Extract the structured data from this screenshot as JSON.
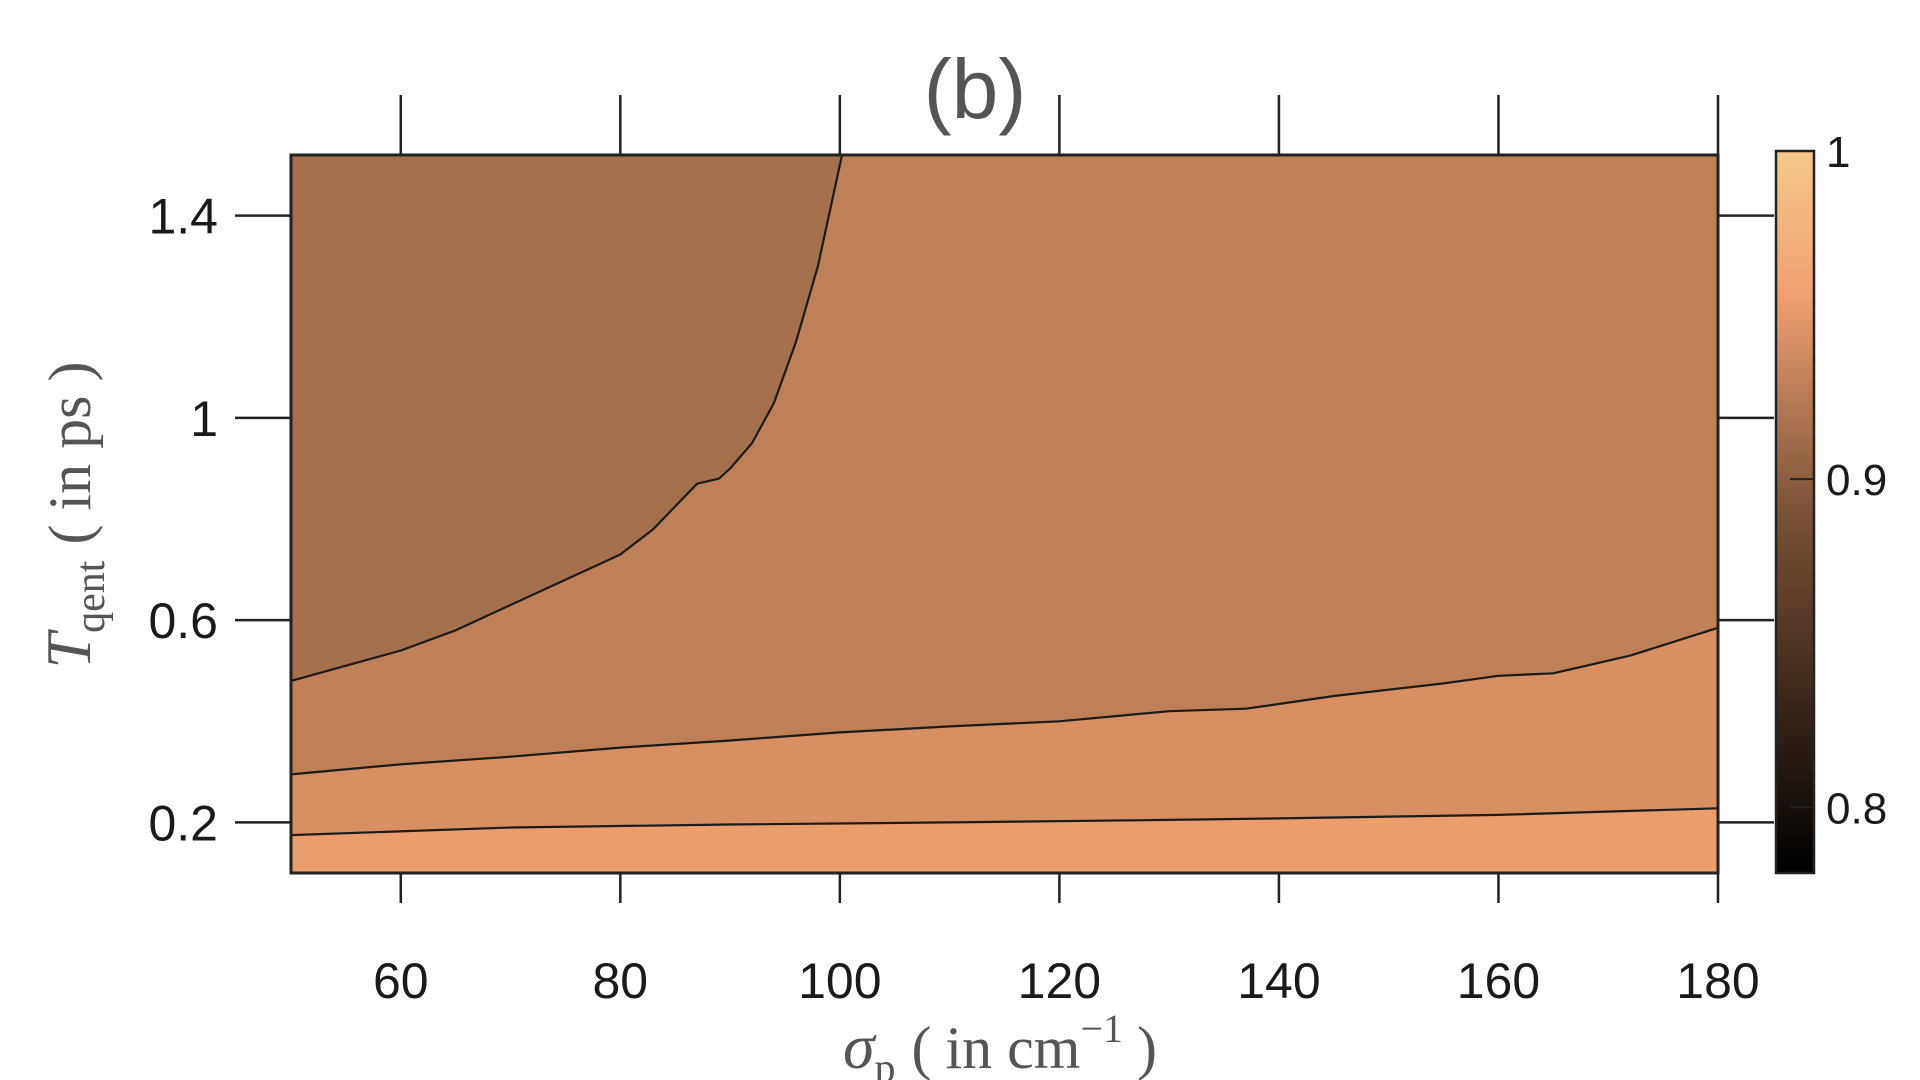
{
  "chart_data": {
    "type": "contour",
    "title": "(b)",
    "xlabel": {
      "symbol": "σ",
      "subscript": "p",
      "unit_prefix": "in cm",
      "unit_exponent": "−1"
    },
    "ylabel": {
      "symbol": "T",
      "subscript": "qent",
      "unit": "in ps"
    },
    "xlim": [
      50,
      180
    ],
    "ylim": [
      0.1,
      1.52
    ],
    "xticks": [
      60,
      80,
      100,
      120,
      140,
      160,
      180
    ],
    "yticks": [
      0.2,
      0.6,
      1,
      1.4
    ],
    "ytick_labels": [
      "0.2",
      "0.6",
      "1",
      "1.4"
    ],
    "colorbar": {
      "lim": [
        0.78,
        1.0
      ],
      "ticks": [
        0.8,
        0.9,
        1
      ],
      "tick_labels": [
        "0.8",
        "0.9",
        "1"
      ],
      "colormap": "copper"
    },
    "regions": [
      {
        "level_range": [
          0.85,
          0.875
        ],
        "color": "#a5704c"
      },
      {
        "level_range": [
          0.875,
          0.9
        ],
        "color": "#bf8058"
      },
      {
        "level_range": [
          0.9,
          0.925
        ],
        "color": "#d88f62"
      },
      {
        "level_range": [
          0.925,
          0.95
        ],
        "color": "#eb9d6c"
      }
    ],
    "contour_lines": [
      {
        "points": [
          [
            50,
            0.48
          ],
          [
            55,
            0.51
          ],
          [
            60,
            0.54
          ],
          [
            65,
            0.58
          ],
          [
            70,
            0.63
          ],
          [
            75,
            0.68
          ],
          [
            78,
            0.71
          ],
          [
            80,
            0.73
          ],
          [
            83,
            0.78
          ],
          [
            87,
            0.87
          ],
          [
            89,
            0.88
          ],
          [
            90,
            0.9
          ],
          [
            92,
            0.95
          ],
          [
            94,
            1.03
          ],
          [
            96,
            1.15
          ],
          [
            98,
            1.3
          ],
          [
            100.2,
            1.52
          ]
        ]
      },
      {
        "points": [
          [
            50,
            0.295
          ],
          [
            60,
            0.315
          ],
          [
            70,
            0.33
          ],
          [
            80,
            0.348
          ],
          [
            90,
            0.362
          ],
          [
            100,
            0.378
          ],
          [
            110,
            0.39
          ],
          [
            120,
            0.4
          ],
          [
            130,
            0.42
          ],
          [
            137,
            0.425
          ],
          [
            145,
            0.45
          ],
          [
            155,
            0.475
          ],
          [
            160,
            0.49
          ],
          [
            165,
            0.495
          ],
          [
            172,
            0.53
          ],
          [
            180,
            0.585
          ]
        ]
      },
      {
        "points": [
          [
            50,
            0.175
          ],
          [
            70,
            0.19
          ],
          [
            90,
            0.196
          ],
          [
            110,
            0.2
          ],
          [
            130,
            0.205
          ],
          [
            140,
            0.208
          ],
          [
            160,
            0.215
          ],
          [
            180,
            0.228
          ]
        ]
      }
    ]
  }
}
